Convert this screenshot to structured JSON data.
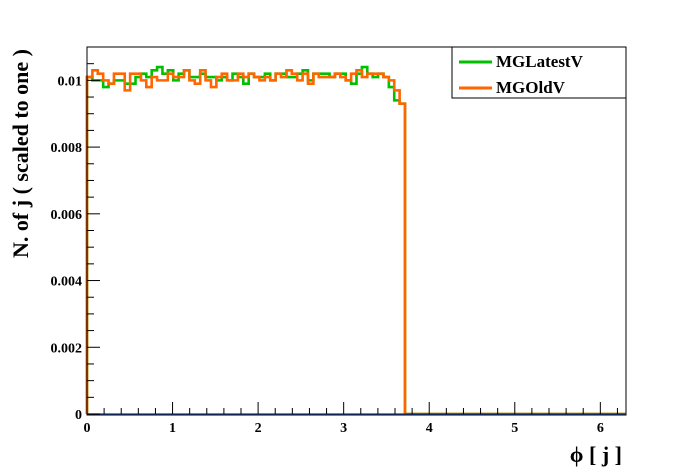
{
  "chart_data": {
    "type": "line",
    "style": "step-histogram",
    "title": "",
    "xlabel": "ϕ [ j ]",
    "ylabel": "N. of j ( scaled to one )",
    "xlim": [
      0,
      6.3
    ],
    "ylim": [
      0,
      0.011
    ],
    "x_ticks": [
      0,
      1,
      2,
      3,
      4,
      5,
      6
    ],
    "x_tick_labels": [
      "0",
      "1",
      "2",
      "3",
      "4",
      "5",
      "6"
    ],
    "y_ticks": [
      0,
      0.002,
      0.004,
      0.006,
      0.008,
      0.01
    ],
    "y_tick_labels": [
      "0",
      "0.002",
      "0.004",
      "0.006",
      "0.008",
      "0.01"
    ],
    "grid": false,
    "legend_position": "top-right",
    "bins": {
      "count": 100,
      "min": 0,
      "max": 6.3
    },
    "series": [
      {
        "name": "MGLatestV",
        "color": "#00c000",
        "values": [
          0.0101,
          0.01,
          0.01,
          0.0098,
          0.0099,
          0.01,
          0.01,
          0.0099,
          0.0099,
          0.0101,
          0.0102,
          0.0101,
          0.0103,
          0.0104,
          0.0102,
          0.0103,
          0.01,
          0.0102,
          0.0103,
          0.0101,
          0.0101,
          0.0102,
          0.0101,
          0.0101,
          0.01,
          0.0101,
          0.01,
          0.0102,
          0.0101,
          0.0099,
          0.0102,
          0.0101,
          0.0101,
          0.0102,
          0.01,
          0.0102,
          0.0102,
          0.0101,
          0.0101,
          0.0102,
          0.0103,
          0.01,
          0.0102,
          0.0102,
          0.0102,
          0.0101,
          0.0102,
          0.0102,
          0.01,
          0.0099,
          0.0102,
          0.0104,
          0.0102,
          0.0101,
          0.0102,
          0.0101,
          0.0098,
          0.0094,
          0.0093,
          0,
          0,
          0,
          0,
          0,
          0,
          0,
          0,
          0,
          0,
          0,
          0,
          0,
          0,
          0,
          0,
          0,
          0,
          0,
          0,
          0,
          0,
          0,
          0,
          0,
          0,
          0,
          0,
          0,
          0,
          0,
          0,
          0,
          0,
          0,
          0,
          0,
          0,
          0,
          0,
          0
        ]
      },
      {
        "name": "MGOldV",
        "color": "#ff6600",
        "values": [
          0.0101,
          0.0103,
          0.0102,
          0.01,
          0.0099,
          0.0102,
          0.0102,
          0.0097,
          0.0102,
          0.0102,
          0.01,
          0.0098,
          0.0101,
          0.01,
          0.01,
          0.0102,
          0.0101,
          0.0101,
          0.0103,
          0.01,
          0.0099,
          0.0103,
          0.01,
          0.0098,
          0.0101,
          0.0102,
          0.01,
          0.01,
          0.0102,
          0.0101,
          0.0102,
          0.0101,
          0.01,
          0.0101,
          0.01,
          0.0102,
          0.0101,
          0.0103,
          0.0102,
          0.01,
          0.0102,
          0.0099,
          0.0102,
          0.0101,
          0.0101,
          0.0101,
          0.0102,
          0.0101,
          0.01,
          0.0102,
          0.0103,
          0.0101,
          0.0102,
          0.0102,
          0.0102,
          0.0101,
          0.01,
          0.0097,
          0.0093,
          0,
          0,
          0,
          0,
          0,
          0,
          0,
          0,
          0,
          0,
          0,
          0,
          0,
          0,
          0,
          0,
          0,
          0,
          0,
          0,
          0,
          0,
          0,
          0,
          0,
          0,
          0,
          0,
          0,
          0,
          0,
          0,
          0,
          0,
          0,
          0,
          0,
          0,
          0,
          0,
          0
        ]
      }
    ]
  }
}
